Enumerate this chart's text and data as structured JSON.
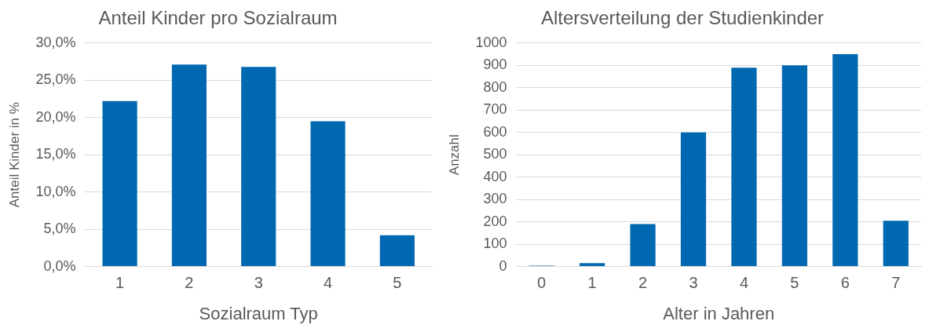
{
  "chart_data": [
    {
      "type": "bar",
      "title": "Anteil Kinder pro Sozialraum",
      "xlabel": "Sozialraum Typ",
      "ylabel": "Anteil Kinder in %",
      "categories": [
        "1",
        "2",
        "3",
        "4",
        "5"
      ],
      "values": [
        22.2,
        27.1,
        26.8,
        19.5,
        4.2
      ],
      "color": "#0068b1",
      "ylim": [
        0,
        30
      ],
      "yticks": [
        {
          "value": 0,
          "label": "0,0%"
        },
        {
          "value": 5,
          "label": "5,0%"
        },
        {
          "value": 10,
          "label": "10,0%"
        },
        {
          "value": 15,
          "label": "15,0%"
        },
        {
          "value": 20,
          "label": "20,0%"
        },
        {
          "value": 25,
          "label": "25,0%"
        },
        {
          "value": 30,
          "label": "30,0%"
        }
      ],
      "grid": "y"
    },
    {
      "type": "bar",
      "title": "Altersverteilung der Studienkinder",
      "xlabel": "Alter in Jahren",
      "ylabel": "Anzahl",
      "categories": [
        "0",
        "1",
        "2",
        "3",
        "4",
        "5",
        "6",
        "7"
      ],
      "values": [
        4,
        15,
        190,
        600,
        890,
        900,
        950,
        205
      ],
      "color": "#0068b1",
      "ylim": [
        0,
        1000
      ],
      "yticks": [
        0,
        100,
        200,
        300,
        400,
        500,
        600,
        700,
        800,
        900,
        1000
      ],
      "grid": "y"
    }
  ]
}
